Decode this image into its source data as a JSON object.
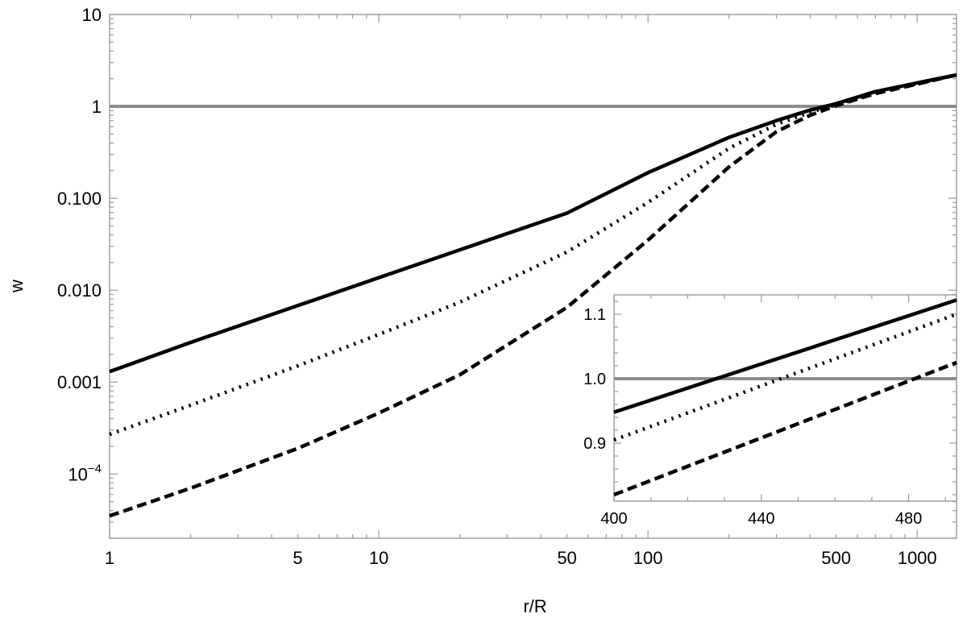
{
  "chart_data": [
    {
      "type": "line",
      "title": "",
      "xlabel": "r/R",
      "ylabel": "w",
      "xscale": "log",
      "yscale": "log",
      "xlim": [
        1,
        1400
      ],
      "ylim": [
        2e-05,
        10
      ],
      "x_ticks": [
        {
          "value": 1,
          "label": "1"
        },
        {
          "value": 5,
          "label": "5"
        },
        {
          "value": 10,
          "label": "10"
        },
        {
          "value": 50,
          "label": "50"
        },
        {
          "value": 100,
          "label": "100"
        },
        {
          "value": 500,
          "label": "500"
        },
        {
          "value": 1000,
          "label": "1000"
        }
      ],
      "y_ticks": [
        {
          "value": 0.0001,
          "label": "10",
          "sup": "−4"
        },
        {
          "value": 0.001,
          "label": "0.001",
          "sup": ""
        },
        {
          "value": 0.01,
          "label": "0.010",
          "sup": ""
        },
        {
          "value": 0.1,
          "label": "0.100",
          "sup": ""
        },
        {
          "value": 1,
          "label": "1",
          "sup": ""
        },
        {
          "value": 10,
          "label": "10",
          "sup": ""
        }
      ],
      "reference_line": {
        "y": 1,
        "color": "#8c8c8c"
      },
      "grid": false,
      "series": [
        {
          "style": "solid",
          "color": "#000000",
          "x": [
            1,
            2,
            5,
            10,
            20,
            50,
            100,
            200,
            300,
            400,
            500,
            700,
            1000,
            1400
          ],
          "y": [
            0.0013,
            0.0027,
            0.0068,
            0.0137,
            0.0275,
            0.069,
            0.19,
            0.46,
            0.7,
            0.91,
            1.07,
            1.45,
            1.8,
            2.2
          ]
        },
        {
          "style": "dotted",
          "color": "#000000",
          "x": [
            1,
            2,
            5,
            10,
            20,
            50,
            100,
            200,
            300,
            400,
            500,
            700,
            1000,
            1400
          ],
          "y": [
            0.00027,
            0.00056,
            0.0015,
            0.0033,
            0.0074,
            0.026,
            0.09,
            0.35,
            0.64,
            0.86,
            1.05,
            1.4,
            1.77,
            2.2
          ]
        },
        {
          "style": "dashed",
          "color": "#000000",
          "x": [
            1,
            2,
            5,
            10,
            20,
            50,
            100,
            200,
            300,
            400,
            500,
            700,
            1000,
            1400
          ],
          "y": [
            3.5e-05,
            7e-05,
            0.00019,
            0.00046,
            0.0012,
            0.0065,
            0.035,
            0.22,
            0.53,
            0.8,
            1.02,
            1.38,
            1.75,
            2.2
          ]
        }
      ]
    },
    {
      "type": "line",
      "title": "",
      "inset": true,
      "xlim": [
        400,
        493
      ],
      "ylim": [
        0.81,
        1.13
      ],
      "x_ticks": [
        {
          "value": 400,
          "label": "400"
        },
        {
          "value": 440,
          "label": "440"
        },
        {
          "value": 480,
          "label": "480"
        }
      ],
      "y_ticks": [
        {
          "value": 0.9,
          "label": "0.9"
        },
        {
          "value": 1.0,
          "label": "1.0"
        },
        {
          "value": 1.1,
          "label": "1.1"
        }
      ],
      "reference_line": {
        "y": 1,
        "color": "#8c8c8c"
      },
      "series": [
        {
          "style": "solid",
          "color": "#000000",
          "x": [
            400,
            493
          ],
          "y": [
            0.948,
            1.122
          ]
        },
        {
          "style": "dotted",
          "color": "#000000",
          "x": [
            400,
            493
          ],
          "y": [
            0.905,
            1.1
          ]
        },
        {
          "style": "dashed",
          "color": "#000000",
          "x": [
            400,
            493
          ],
          "y": [
            0.82,
            1.025
          ]
        }
      ]
    }
  ]
}
